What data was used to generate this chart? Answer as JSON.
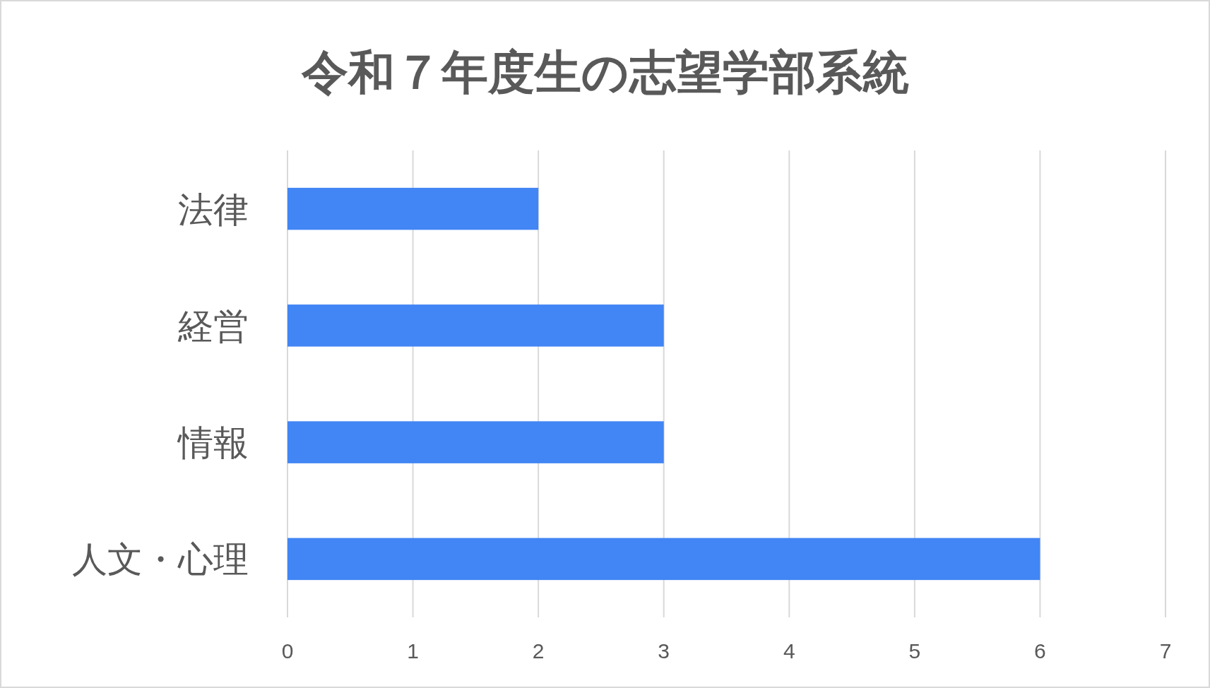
{
  "chart_data": {
    "type": "bar",
    "orientation": "horizontal",
    "title": "令和７年度生の志望学部系統",
    "categories": [
      "法律",
      "経営",
      "情報",
      "人文・心理"
    ],
    "values": [
      2,
      3,
      3,
      6
    ],
    "color": "#4285f4",
    "xlim": [
      0,
      7
    ],
    "xticks": [
      0,
      1,
      2,
      3,
      4,
      5,
      6,
      7
    ],
    "grid": "x"
  }
}
